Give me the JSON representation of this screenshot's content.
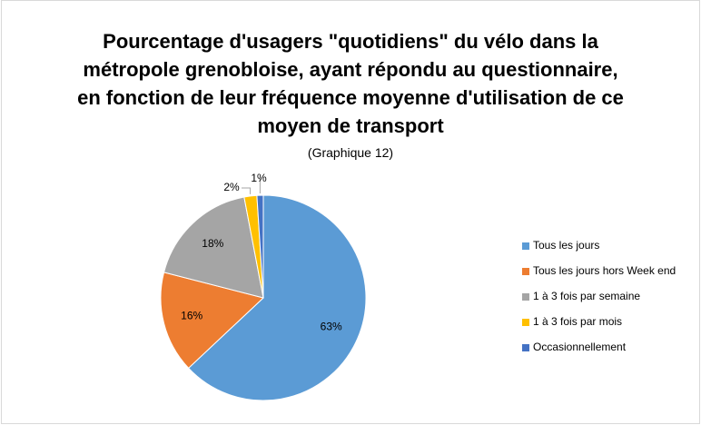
{
  "chart_data": {
    "type": "pie",
    "title": "Pourcentage d'usagers \"quotidiens\" du vélo dans la métropole grenobloise, ayant répondu au questionnaire, en fonction de leur fréquence moyenne d'utilisation de ce moyen de transport",
    "subtitle": "(Graphique 12)",
    "categories": [
      "Tous les jours",
      "Tous les jours hors Week end",
      "1 à 3 fois par semaine",
      "1 à 3 fois par mois",
      "Occasionnellement"
    ],
    "values": [
      63,
      16,
      18,
      2,
      1
    ],
    "value_labels": [
      "63%",
      "16%",
      "18%",
      "2%",
      "1%"
    ],
    "colors": [
      "#5b9bd5",
      "#ed7d31",
      "#a5a5a5",
      "#ffc000",
      "#4472c4"
    ],
    "legend": "right"
  }
}
